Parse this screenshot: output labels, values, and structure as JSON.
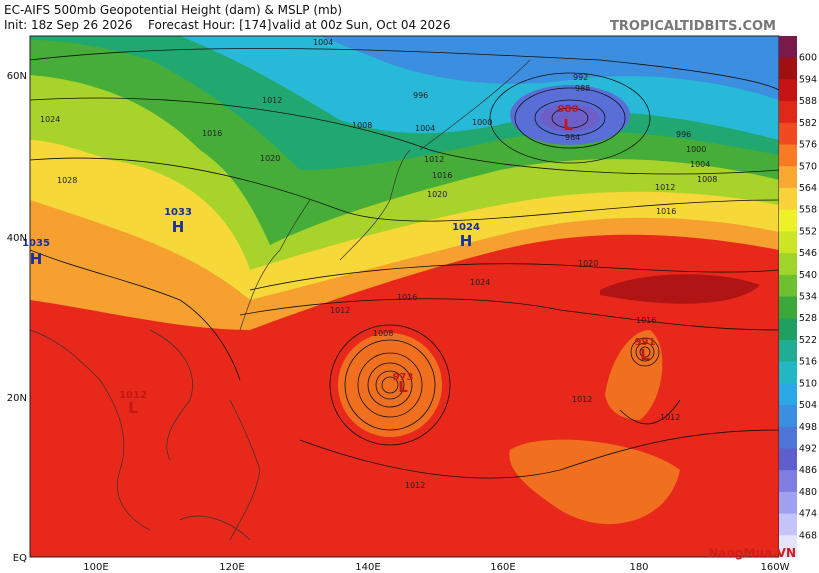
{
  "header": {
    "title": "EC-AIFS 500mb Geopotential Height (dam) & MSLP (mb)",
    "init": "Init: 18z Sep 26 2026",
    "forecast_hour": "Forecast Hour: [174]",
    "valid": "valid at 00z Sun, Oct 04 2026",
    "site": "TROPICALTIDBITS.COM"
  },
  "lat_labels": [
    "60N",
    "40N",
    "20N",
    "EQ"
  ],
  "lon_labels": [
    "100E",
    "120E",
    "140E",
    "160E",
    "180",
    "160W"
  ],
  "colorbar": [
    "600",
    "594",
    "588",
    "582",
    "576",
    "570",
    "564",
    "558",
    "552",
    "546",
    "540",
    "534",
    "528",
    "522",
    "516",
    "510",
    "504",
    "498",
    "492",
    "486",
    "480",
    "474",
    "468"
  ],
  "centers": [
    {
      "letter": "H",
      "label": "1035"
    },
    {
      "letter": "H",
      "label": "1033"
    },
    {
      "letter": "H",
      "label": "1024"
    },
    {
      "letter": "L",
      "label": "980"
    },
    {
      "letter": "L",
      "label": "973"
    },
    {
      "letter": "L",
      "label": "991"
    },
    {
      "letter": "L",
      "label": "1012"
    }
  ],
  "isobar_labels": [
    "1004",
    "1012",
    "996",
    "1008",
    "1004",
    "1000",
    "992",
    "988",
    "984",
    "1024",
    "1028",
    "1016",
    "1020",
    "1012",
    "1016",
    "1020",
    "1016",
    "1008",
    "1004",
    "996",
    "1000",
    "1012",
    "1008",
    "1012",
    "1012",
    "1016",
    "1024",
    "1020",
    "1012",
    "1016",
    "1012"
  ],
  "watermark": "NangMua.VN"
}
